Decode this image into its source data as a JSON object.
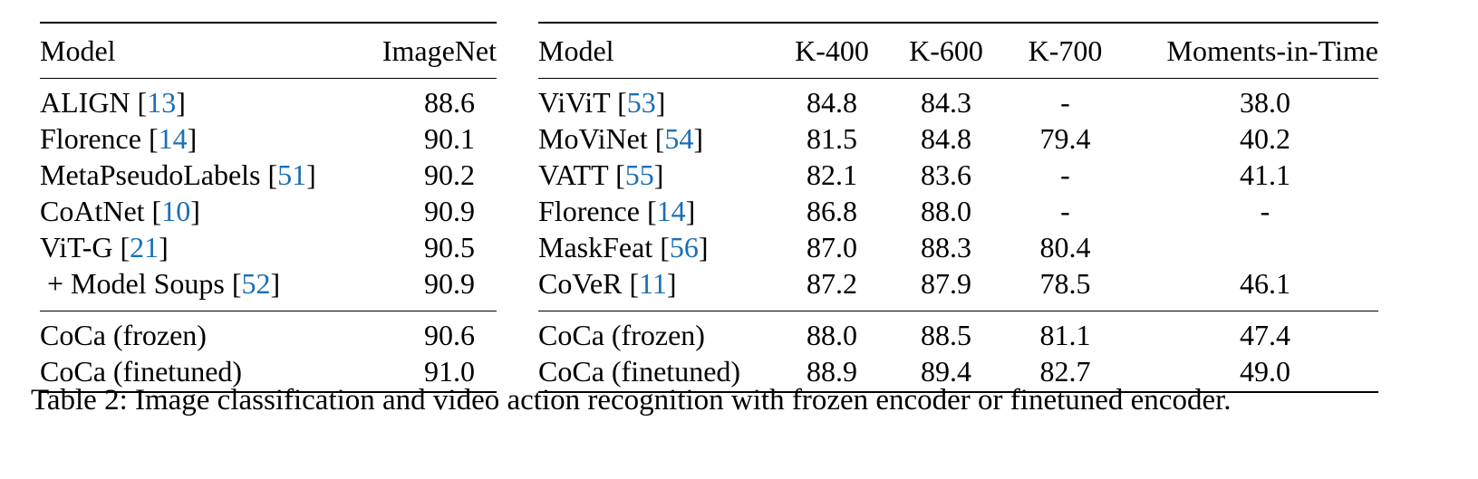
{
  "table_left": {
    "headers": [
      "Model",
      "ImageNet"
    ],
    "rows": [
      {
        "model": "ALIGN ",
        "cite": "13",
        "value": "88.6"
      },
      {
        "model": "Florence ",
        "cite": "14",
        "value": "90.1"
      },
      {
        "model": "MetaPseudoLabels ",
        "cite": "51",
        "value": "90.2"
      },
      {
        "model": "CoAtNet ",
        "cite": "10",
        "value": "90.9"
      },
      {
        "model": "ViT-G ",
        "cite": "21",
        "value": "90.5"
      },
      {
        "model": " + Model Soups ",
        "cite": "52",
        "value": "90.9"
      }
    ],
    "ours": [
      {
        "model": "CoCa (frozen)",
        "value": "90.6"
      },
      {
        "model": "CoCa (finetuned)",
        "value": "91.0"
      }
    ]
  },
  "table_right": {
    "headers": [
      "Model",
      "K-400",
      "K-600",
      "K-700",
      "Moments-in-Time"
    ],
    "rows": [
      {
        "model": "ViViT ",
        "cite": "53",
        "values": [
          "84.8",
          "84.3",
          "-",
          "38.0"
        ]
      },
      {
        "model": "MoViNet ",
        "cite": "54",
        "values": [
          "81.5",
          "84.8",
          "79.4",
          "40.2"
        ]
      },
      {
        "model": "VATT ",
        "cite": "55",
        "values": [
          "82.1",
          "83.6",
          "-",
          "41.1"
        ]
      },
      {
        "model": "Florence ",
        "cite": "14",
        "values": [
          "86.8",
          "88.0",
          "-",
          "-"
        ]
      },
      {
        "model": "MaskFeat ",
        "cite": "56",
        "values": [
          "87.0",
          "88.3",
          "80.4",
          ""
        ]
      },
      {
        "model": "CoVeR ",
        "cite": "11",
        "values": [
          "87.2",
          "87.9",
          "78.5",
          "46.1"
        ]
      }
    ],
    "ours": [
      {
        "model": "CoCa (frozen)",
        "values": [
          "88.0",
          "88.5",
          "81.1",
          "47.4"
        ]
      },
      {
        "model": "CoCa (finetuned)",
        "values": [
          "88.9",
          "89.4",
          "82.7",
          "49.0"
        ]
      }
    ]
  },
  "caption": "Table 2:  Image classification and video action recognition with frozen encoder or finetuned encoder."
}
